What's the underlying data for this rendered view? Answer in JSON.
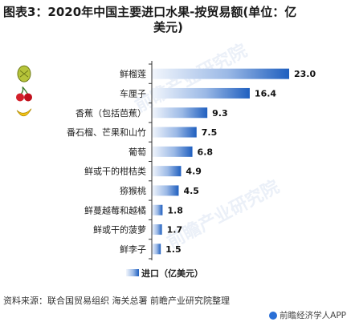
{
  "title_line1": "图表3：2020年中国主要进口水果-按贸易额(单位：亿",
  "title_line2": "美元)",
  "source": "资料来源：联合国贸易组织 海关总署 前瞻产业研究院整理",
  "brand": "前瞻经济学人APP",
  "watermark": "前瞻产业研究院",
  "colors": {
    "bar_dark": "#1f5fbf",
    "bar_light": "#e8f0fb",
    "axis": "#333333"
  },
  "icons": [
    "durian-icon",
    "cherry-icon",
    "banana-icon"
  ],
  "chart_data": {
    "type": "bar",
    "orientation": "horizontal",
    "categories": [
      "鲜榴莲",
      "车厘子",
      "香蕉（包括芭蕉）",
      "番石榴、芒果和山竹",
      "葡萄",
      "鲜或干的柑桔类",
      "猕猴桃",
      "鲜蔓越莓和越橘",
      "鲜或干的菠萝",
      "鲜李子"
    ],
    "values": [
      23.0,
      16.4,
      9.3,
      7.5,
      6.8,
      4.9,
      4.5,
      1.8,
      1.7,
      1.5
    ],
    "value_labels": [
      "23.0",
      "16.4",
      "9.3",
      "7.5",
      "6.8",
      "4.9",
      "4.5",
      "1.8",
      "1.7",
      "1.5"
    ],
    "xlim": [
      0,
      23.0
    ],
    "legend": {
      "label": "进口（亿美元）",
      "position": "bottom"
    },
    "grid": false
  }
}
